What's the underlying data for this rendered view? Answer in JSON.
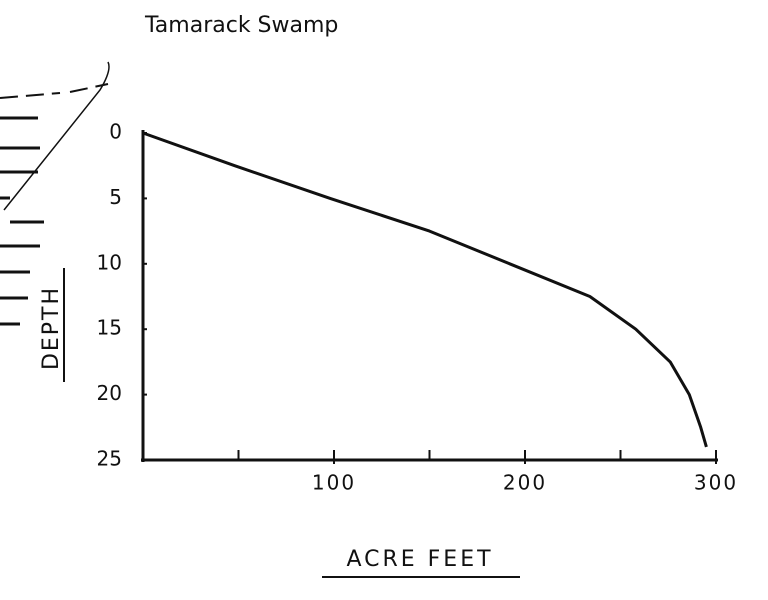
{
  "chart_data": {
    "type": "line",
    "title": "Tamarack Swamp",
    "x_label": "ACRE FEET",
    "y_label": "DEPTH",
    "x": [
      0,
      48,
      98,
      150,
      192,
      234,
      258,
      276,
      286,
      292,
      295
    ],
    "values": [
      0,
      2.5,
      5,
      7.5,
      10,
      12.5,
      15,
      17.5,
      20,
      22.5,
      24
    ],
    "color": "#111111",
    "xlim": [
      0,
      300
    ],
    "xticks": [
      100,
      200,
      300
    ],
    "xminorticks": [
      50,
      150,
      250
    ],
    "ylim": [
      0,
      25
    ],
    "yticks": [
      0,
      5,
      10,
      15,
      20,
      25
    ],
    "y_inverted": true
  }
}
